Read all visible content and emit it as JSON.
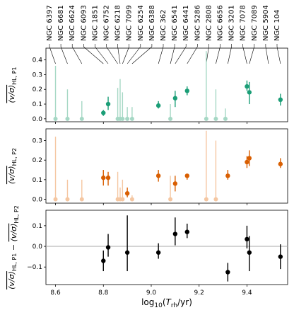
{
  "galaxies": [
    "NGC 6397",
    "NGC 6681",
    "NGC 6624",
    "NGC 6093",
    "NGC 1851",
    "NGC 6752",
    "NGC 6218",
    "NGC 7099",
    "NGC 6254",
    "NGC 6388",
    "NGC 362",
    "NGC 6541",
    "NGC 6441",
    "NGC 5286",
    "NGC 2808",
    "NGC 6656",
    "NGC 3201",
    "NGC 7078",
    "NGC 7089",
    "NGC 5904",
    "NGC 104"
  ],
  "colors": {
    "p1": "#1b9e77",
    "p2": "#d95f02",
    "diff": "#000000",
    "p1_faint": "#a6d8c5",
    "p2_faint": "#f5c7a2"
  },
  "chart_data": [
    {
      "type": "scatter",
      "panel": "top",
      "ylabel": "(v/σ)HL, P1",
      "ylim": [
        -0.02,
        0.48
      ],
      "yticks": [
        0.0,
        0.1,
        0.2,
        0.3,
        0.4
      ],
      "xlim": [
        8.56,
        9.57
      ],
      "detections": [
        {
          "x": 8.8,
          "y": 0.04,
          "lo": 0.02,
          "hi": 0.06
        },
        {
          "x": 8.82,
          "y": 0.1,
          "lo": 0.06,
          "hi": 0.15
        },
        {
          "x": 9.03,
          "y": 0.09,
          "lo": 0.07,
          "hi": 0.12
        },
        {
          "x": 9.1,
          "y": 0.14,
          "lo": 0.08,
          "hi": 0.19
        },
        {
          "x": 9.15,
          "y": 0.19,
          "lo": 0.16,
          "hi": 0.22
        },
        {
          "x": 9.4,
          "y": 0.22,
          "lo": 0.19,
          "hi": 0.26
        },
        {
          "x": 9.41,
          "y": 0.18,
          "lo": 0.1,
          "hi": 0.25
        },
        {
          "x": 9.54,
          "y": 0.13,
          "lo": 0.09,
          "hi": 0.17
        }
      ],
      "upper_limits": [
        {
          "x": 8.6,
          "top": 0.36
        },
        {
          "x": 8.65,
          "top": 0.2
        },
        {
          "x": 8.71,
          "top": 0.12
        },
        {
          "x": 8.86,
          "top": 0.21
        },
        {
          "x": 8.87,
          "top": 0.27
        },
        {
          "x": 8.88,
          "top": 0.18
        },
        {
          "x": 8.9,
          "top": 0.08
        },
        {
          "x": 8.92,
          "top": 0.08
        },
        {
          "x": 9.08,
          "top": 0.1
        },
        {
          "x": 9.23,
          "top": 0.46
        },
        {
          "x": 9.27,
          "top": 0.2
        },
        {
          "x": 9.31,
          "top": 0.07
        }
      ]
    },
    {
      "type": "scatter",
      "panel": "middle",
      "ylabel": "(v/σ)HL, P2",
      "ylim": [
        -0.02,
        0.36
      ],
      "yticks": [
        0.0,
        0.1,
        0.2,
        0.3
      ],
      "xlim": [
        8.56,
        9.57
      ],
      "detections": [
        {
          "x": 8.8,
          "y": 0.11,
          "lo": 0.07,
          "hi": 0.15
        },
        {
          "x": 8.82,
          "y": 0.11,
          "lo": 0.07,
          "hi": 0.14
        },
        {
          "x": 8.9,
          "y": 0.03,
          "lo": 0.01,
          "hi": 0.06
        },
        {
          "x": 9.03,
          "y": 0.12,
          "lo": 0.09,
          "hi": 0.15
        },
        {
          "x": 9.1,
          "y": 0.08,
          "lo": 0.04,
          "hi": 0.12
        },
        {
          "x": 9.15,
          "y": 0.12,
          "lo": 0.1,
          "hi": 0.13
        },
        {
          "x": 9.32,
          "y": 0.12,
          "lo": 0.1,
          "hi": 0.15
        },
        {
          "x": 9.4,
          "y": 0.19,
          "lo": 0.16,
          "hi": 0.22
        },
        {
          "x": 9.41,
          "y": 0.21,
          "lo": 0.17,
          "hi": 0.25
        },
        {
          "x": 9.54,
          "y": 0.18,
          "lo": 0.16,
          "hi": 0.21
        }
      ],
      "upper_limits": [
        {
          "x": 8.6,
          "top": 0.32
        },
        {
          "x": 8.65,
          "top": 0.1
        },
        {
          "x": 8.71,
          "top": 0.1
        },
        {
          "x": 8.86,
          "top": 0.14
        },
        {
          "x": 8.87,
          "top": 0.06
        },
        {
          "x": 8.88,
          "top": 0.1
        },
        {
          "x": 8.92,
          "top": 0.02
        },
        {
          "x": 9.08,
          "top": 0.12
        },
        {
          "x": 9.23,
          "top": 0.35
        },
        {
          "x": 9.27,
          "top": 0.3
        }
      ]
    },
    {
      "type": "scatter",
      "panel": "bottom",
      "ylabel": "(v/σ)HL, P1 − (v/σ)HL, P2",
      "xlabel": "log10(Trh/yr)",
      "ylim": [
        -0.185,
        0.175
      ],
      "yticks": [
        -0.1,
        0.0,
        0.1
      ],
      "xlim": [
        8.56,
        9.57
      ],
      "xticks": [
        8.6,
        8.8,
        9.0,
        9.2,
        9.4
      ],
      "reference_line": 0.0,
      "detections": [
        {
          "x": 8.8,
          "y": -0.07,
          "lo": -0.12,
          "hi": -0.02
        },
        {
          "x": 8.82,
          "y": -0.005,
          "lo": -0.05,
          "hi": 0.06
        },
        {
          "x": 8.9,
          "y": -0.03,
          "lo": -0.12,
          "hi": 0.15
        },
        {
          "x": 9.03,
          "y": -0.03,
          "lo": -0.06,
          "hi": 0.015
        },
        {
          "x": 9.1,
          "y": 0.06,
          "lo": 0.005,
          "hi": 0.14
        },
        {
          "x": 9.15,
          "y": 0.07,
          "lo": 0.04,
          "hi": 0.11
        },
        {
          "x": 9.32,
          "y": -0.125,
          "lo": -0.17,
          "hi": -0.08
        },
        {
          "x": 9.4,
          "y": 0.035,
          "lo": -0.01,
          "hi": 0.1
        },
        {
          "x": 9.41,
          "y": -0.03,
          "lo": -0.12,
          "hi": 0.05
        },
        {
          "x": 9.54,
          "y": -0.05,
          "lo": -0.11,
          "hi": 0.01
        }
      ]
    }
  ],
  "gal_x": [
    8.6,
    8.65,
    8.71,
    8.8,
    8.82,
    8.86,
    8.87,
    8.88,
    8.9,
    8.92,
    9.03,
    9.08,
    9.1,
    9.15,
    9.23,
    9.27,
    9.32,
    9.4,
    9.41,
    9.49,
    9.54
  ]
}
